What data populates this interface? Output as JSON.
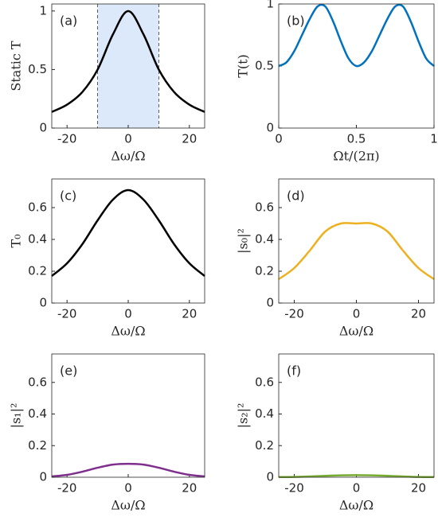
{
  "chart_data": [
    {
      "type": "line",
      "panel": "(a)",
      "ylabel": "Static T",
      "xlabel": "Δω/Ω",
      "x": [
        -25,
        -20,
        -15,
        -10,
        -5,
        0,
        5,
        10,
        15,
        20,
        25
      ],
      "series": [
        {
          "color": "#000000",
          "values": [
            0.138,
            0.2,
            0.308,
            0.5,
            0.8,
            1,
            0.8,
            0.5,
            0.308,
            0.2,
            0.138
          ]
        }
      ],
      "shade": [
        -10,
        10
      ],
      "shade_color": "#dce9fa",
      "xlim": [
        -25,
        25
      ],
      "xticks": [
        -20,
        0,
        20
      ],
      "ylim": [
        0,
        1.06
      ],
      "yticks": [
        0,
        0.5,
        1
      ]
    },
    {
      "type": "line",
      "panel": "(b)",
      "ylabel": "T(t)",
      "xlabel": "Ωt/(2π)",
      "x": [
        0,
        0.05,
        0.1,
        0.15,
        0.2,
        0.25,
        0.3,
        0.35,
        0.4,
        0.45,
        0.5,
        0.55,
        0.6,
        0.65,
        0.7,
        0.75,
        0.8,
        0.85,
        0.9,
        0.95,
        1
      ],
      "series": [
        {
          "color": "#0072bd",
          "values": [
            0.5,
            0.53,
            0.62,
            0.75,
            0.88,
            0.98,
            0.98,
            0.86,
            0.7,
            0.56,
            0.5,
            0.53,
            0.62,
            0.75,
            0.88,
            0.98,
            0.98,
            0.86,
            0.7,
            0.56,
            0.5
          ]
        }
      ],
      "xlim": [
        0,
        1
      ],
      "xticks": [
        0,
        0.5,
        1
      ],
      "ylim": [
        0,
        1
      ],
      "yticks": [
        0,
        0.5,
        1
      ]
    },
    {
      "type": "line",
      "panel": "(c)",
      "ylabel": "T₀",
      "xlabel": "Δω/Ω",
      "x": [
        -25,
        -20,
        -15,
        -10,
        -5,
        0,
        5,
        10,
        15,
        20,
        25
      ],
      "series": [
        {
          "color": "#000000",
          "values": [
            0.17,
            0.25,
            0.37,
            0.52,
            0.65,
            0.71,
            0.65,
            0.52,
            0.37,
            0.25,
            0.17
          ]
        }
      ],
      "xlim": [
        -25,
        25
      ],
      "xticks": [
        -20,
        0,
        20
      ],
      "ylim": [
        0,
        0.78
      ],
      "yticks": [
        0,
        0.2,
        0.4,
        0.6
      ]
    },
    {
      "type": "line",
      "panel": "(d)",
      "ylabel": "|s₀|²",
      "xlabel": "Δω/Ω",
      "x": [
        -25,
        -20,
        -15,
        -10,
        -5,
        0,
        5,
        10,
        15,
        20,
        25
      ],
      "series": [
        {
          "color": "#edb120",
          "values": [
            0.15,
            0.22,
            0.33,
            0.45,
            0.5,
            0.5,
            0.5,
            0.45,
            0.33,
            0.22,
            0.15
          ]
        }
      ],
      "xlim": [
        -25,
        25
      ],
      "xticks": [
        -20,
        0,
        20
      ],
      "ylim": [
        0,
        0.78
      ],
      "yticks": [
        0,
        0.2,
        0.4,
        0.6
      ]
    },
    {
      "type": "line",
      "panel": "(e)",
      "ylabel": "|s₁|²",
      "xlabel": "Δω/Ω",
      "x": [
        -25,
        -20,
        -15,
        -10,
        -5,
        0,
        5,
        10,
        15,
        20,
        25
      ],
      "series": [
        {
          "color": "#7e2f8e",
          "values": [
            0.005,
            0.015,
            0.035,
            0.06,
            0.08,
            0.085,
            0.08,
            0.06,
            0.035,
            0.015,
            0.005
          ]
        }
      ],
      "xlim": [
        -25,
        25
      ],
      "xticks": [
        -20,
        0,
        20
      ],
      "ylim": [
        0,
        0.78
      ],
      "yticks": [
        0,
        0.2,
        0.4,
        0.6
      ]
    },
    {
      "type": "line",
      "panel": "(f)",
      "ylabel": "|s₂|²",
      "xlabel": "Δω/Ω",
      "x": [
        -25,
        -20,
        -15,
        -10,
        -5,
        0,
        5,
        10,
        15,
        20,
        25
      ],
      "series": [
        {
          "color": "#77ac30",
          "values": [
            0.001,
            0.002,
            0.005,
            0.009,
            0.012,
            0.013,
            0.012,
            0.009,
            0.005,
            0.002,
            0.001
          ]
        }
      ],
      "xlim": [
        -25,
        25
      ],
      "xticks": [
        -20,
        0,
        20
      ],
      "ylim": [
        0,
        0.78
      ],
      "yticks": [
        0,
        0.2,
        0.4,
        0.6
      ]
    }
  ]
}
